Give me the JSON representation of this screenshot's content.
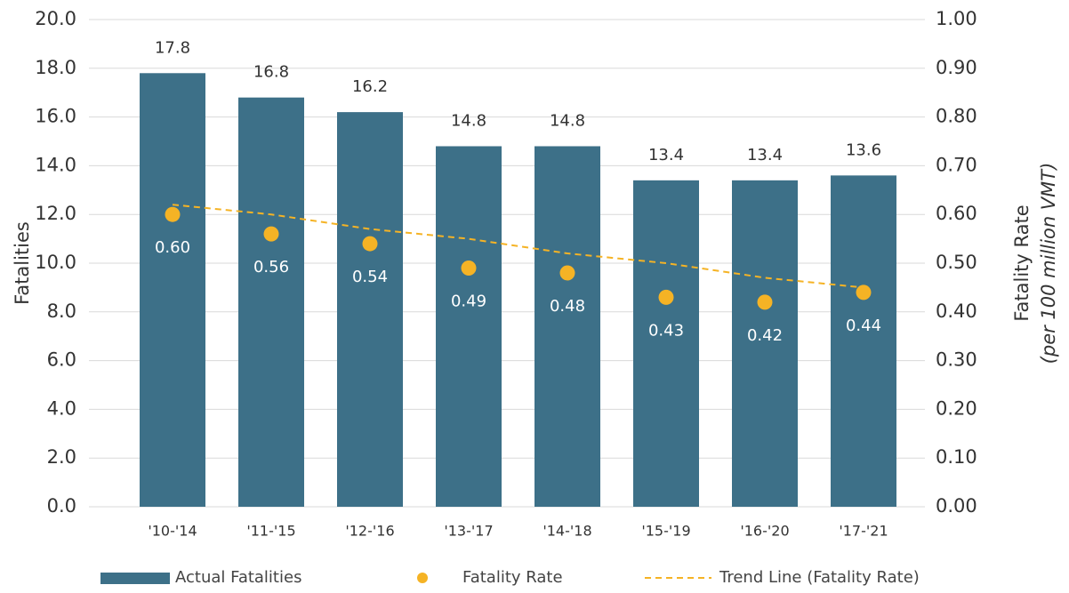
{
  "chart_data": {
    "type": "bar",
    "ylabel": "Fatalities",
    "y2label": "Fatality Rate",
    "y2label_note": "(per 100 million VMT)",
    "categories": [
      "'10-'14",
      "'11-'15",
      "'12-'16",
      "'13-'17",
      "'14-'18",
      "'15-'19",
      "'16-'20",
      "'17-'21"
    ],
    "series": [
      {
        "name": "Actual Fatalities",
        "type": "bar",
        "color": "#3d7088",
        "values": [
          17.8,
          16.8,
          16.2,
          14.8,
          14.8,
          13.4,
          13.4,
          13.6
        ]
      },
      {
        "name": "Fatality Rate",
        "type": "scatter",
        "axis": "y2",
        "color": "#f5b325",
        "values": [
          0.6,
          0.56,
          0.54,
          0.49,
          0.48,
          0.43,
          0.42,
          0.44
        ],
        "value_labels": [
          "0.60",
          "0.56",
          "0.54",
          "0.49",
          "0.48",
          "0.43",
          "0.42",
          "0.44"
        ]
      },
      {
        "name": "Trend Line (Fatality Rate)",
        "type": "line",
        "axis": "y2",
        "color": "#f5b325",
        "dashed": true,
        "values": [
          0.62,
          0.6,
          0.57,
          0.55,
          0.52,
          0.5,
          0.47,
          0.45
        ]
      }
    ],
    "ylim": [
      0,
      20
    ],
    "yticks": [
      {
        "value": 0,
        "label": "0.0"
      },
      {
        "value": 2,
        "label": "2.0"
      },
      {
        "value": 4,
        "label": "4.0"
      },
      {
        "value": 6,
        "label": "6.0"
      },
      {
        "value": 8,
        "label": "8.0"
      },
      {
        "value": 10,
        "label": "10.0"
      },
      {
        "value": 12,
        "label": "12.0"
      },
      {
        "value": 14,
        "label": "14.0"
      },
      {
        "value": 16,
        "label": "16.0"
      },
      {
        "value": 18,
        "label": "18.0"
      },
      {
        "value": 20,
        "label": "20.0"
      }
    ],
    "y2lim": [
      0,
      1
    ],
    "y2ticks": [
      {
        "value": 0,
        "label": "0.00"
      },
      {
        "value": 0.1,
        "label": "0.10"
      },
      {
        "value": 0.2,
        "label": "0.20"
      },
      {
        "value": 0.3,
        "label": "0.30"
      },
      {
        "value": 0.4,
        "label": "0.40"
      },
      {
        "value": 0.5,
        "label": "0.50"
      },
      {
        "value": 0.6,
        "label": "0.60"
      },
      {
        "value": 0.7,
        "label": "0.70"
      },
      {
        "value": 0.8,
        "label": "0.80"
      },
      {
        "value": 0.9,
        "label": "0.90"
      },
      {
        "value": 1,
        "label": "1.00"
      }
    ],
    "grid": true,
    "legend": "bottom"
  }
}
